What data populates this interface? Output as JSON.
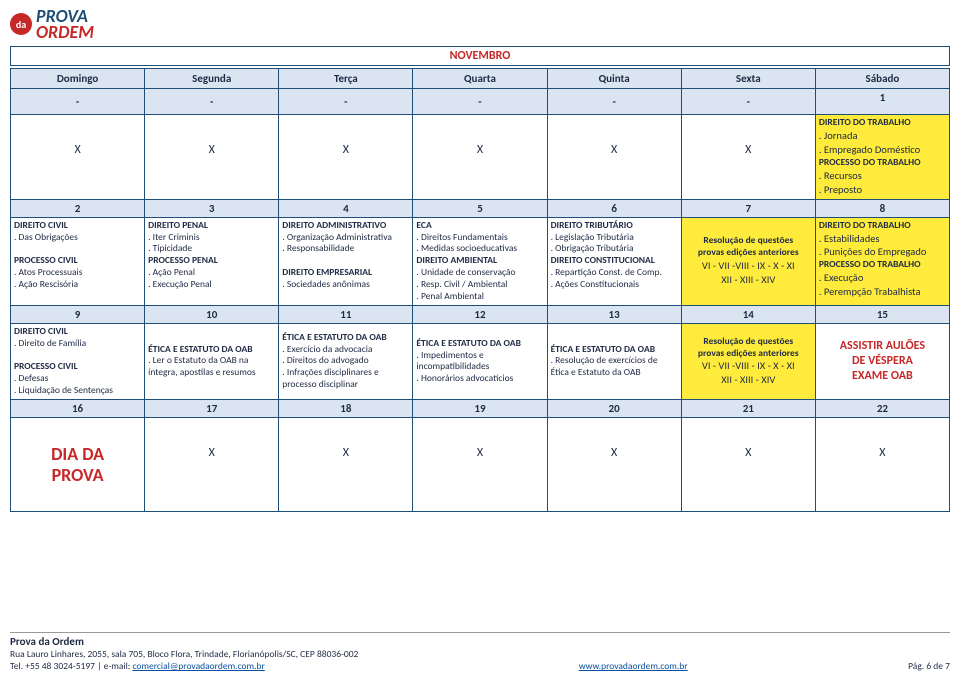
{
  "logo": {
    "prova": "PROVA",
    "ordem": "ORDEM",
    "da": "da"
  },
  "month": "NOVEMBRO",
  "weekdays": [
    "Domingo",
    "Segunda",
    "Terça",
    "Quarta",
    "Quinta",
    "Sexta",
    "Sábado"
  ],
  "row1_dash": "-",
  "row1_day": "1",
  "row2_x": "X",
  "row2_sat": {
    "l1": "DIREITO DO TRABALHO",
    "l2": ". Jornada",
    "l3": ". Empregado Doméstico",
    "l4": "PROCESSO DO TRABALHO",
    "l5": ". Recursos",
    "l6": ". Preposto"
  },
  "days_a": [
    "2",
    "3",
    "4",
    "5",
    "6",
    "7",
    "8"
  ],
  "c2": {
    "l1": "DIREITO CIVIL",
    "l2": ". Das Obrigações",
    "l3": "",
    "l4": "PROCESSO CIVIL",
    "l5": ". Atos Processuais",
    "l6": ". Ação Rescisória"
  },
  "c3": {
    "l1": "DIREITO PENAL",
    "l2": ". Iter Criminis",
    "l3": ". Tipicidade",
    "l4": "PROCESSO PENAL",
    "l5": ". Ação Penal",
    "l6": ". Execução Penal"
  },
  "c4": {
    "l1": "DIREITO ADMINISTRATIVO",
    "l2": ". Organização Administrativa",
    "l3": ". Responsabilidade",
    "l4": "",
    "l5": "DIREITO EMPRESARIAL",
    "l6": ". Sociedades anônimas"
  },
  "c5": {
    "l1": "ECA",
    "l2": ". Direitos Fundamentais",
    "l3": ". Medidas socioeducativas",
    "l4": "DIREITO AMBIENTAL",
    "l5": ". Unidade de conservação",
    "l6": ". Resp. Civil / Ambiental",
    "l7": ". Penal Ambiental"
  },
  "c6": {
    "l1": "DIREITO TRIBUTÁRIO",
    "l2": ". Legislação Tributária",
    "l3": ". Obrigação Tributária",
    "l4": "DIREITO CONSTITUCIONAL",
    "l5": ". Repartição Const. de Comp.",
    "l6": ". Ações Constitucionais"
  },
  "c7": {
    "l1": "Resolução de questões",
    "l2": "provas edições anteriores",
    "l3": "VI - VII -VIII - IX - X - XI",
    "l4": "XII - XIII - XIV"
  },
  "c8": {
    "l1": "DIREITO DO TRABALHO",
    "l2": ". Estabilidades",
    "l3": ". Punições do Empregado",
    "l4": "PROCESSO DO TRABALHO",
    "l5": ". Execução",
    "l6": ". Perempção Trabalhista"
  },
  "days_b": [
    "9",
    "10",
    "11",
    "12",
    "13",
    "14",
    "15"
  ],
  "c9": {
    "l1": "DIREITO CIVIL",
    "l2": ". Direito de Família",
    "l3": "",
    "l4": "PROCESSO CIVIL",
    "l5": ". Defesas",
    "l6": ". Liquidação de Sentenças"
  },
  "c10": {
    "l1": "ÉTICA E ESTATUTO DA OAB",
    "l2": ". Ler o Estatuto da OAB na",
    "l3": "íntegra, apostilas e resumos"
  },
  "c11": {
    "l1": "ÉTICA E ESTATUTO DA OAB",
    "l2": ". Exercício da advocacia",
    "l3": ". Direitos do advogado",
    "l4": ". Infrações disciplinares e",
    "l5": "processo disciplinar"
  },
  "c12": {
    "l1": "ÉTICA E ESTATUTO DA OAB",
    "l2": ". Impedimentos e",
    "l3": "incompatibilidades",
    "l4": ". Honorários advocatícios"
  },
  "c13": {
    "l1": "ÉTICA E ESTATUTO DA OAB",
    "l2": ". Resolução de exercícios de",
    "l3": "Ética e Estatuto da OAB"
  },
  "c14": {
    "l1": "Resolução de questões",
    "l2": "provas edições anteriores",
    "l3": "VI - VII -VIII - IX - X - XI",
    "l4": "XII - XIII - XIV"
  },
  "c15": {
    "l1": "ASSISTIR AULÕES",
    "l2": "DE VÉSPERA",
    "l3": "EXAME OAB"
  },
  "days_c": [
    "16",
    "17",
    "18",
    "19",
    "20",
    "21",
    "22"
  ],
  "c16": {
    "l1": "DIA DA",
    "l2": "PROVA"
  },
  "c17x": "X",
  "footer": {
    "title": "Prova da Ordem",
    "addr": "Rua Lauro Linhares, 2055, sala 705, Bloco Flora, Trindade, Florianópolis/SC, CEP 88036-002",
    "contact_pre": "Tel. +55 48 3024-5197 | e-mail: ",
    "email": "comercial@provadaordem.com.br",
    "site": "www.provadaordem.com.br",
    "page": "Pág. 6 de 7"
  }
}
